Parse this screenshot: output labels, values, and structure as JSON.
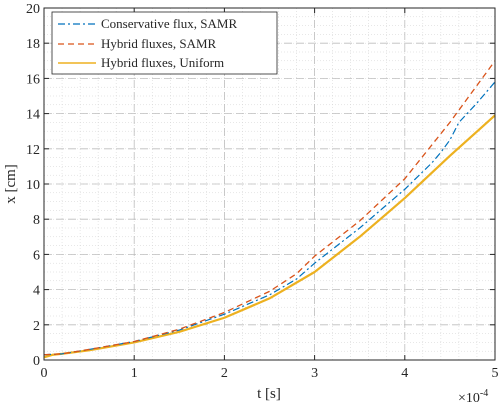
{
  "chart_data": {
    "type": "line",
    "xlabel": "t [s]",
    "ylabel": "x [cm]",
    "x_multiplier_label": "×10",
    "x_multiplier_exp": "-4",
    "xlim": [
      0,
      5
    ],
    "ylim": [
      0,
      20
    ],
    "x_ticks": [
      "0",
      "1",
      "2",
      "3",
      "4",
      "5"
    ],
    "y_ticks": [
      "0",
      "2",
      "4",
      "6",
      "8",
      "10",
      "12",
      "14",
      "16",
      "18",
      "20"
    ],
    "grid": true,
    "minor_grid": true,
    "legend_position": "top-left",
    "series": [
      {
        "name": "Conservative flux, SAMR",
        "color": "#0072BD",
        "style": "dashdot",
        "x": [
          0,
          0.2,
          0.5,
          1.0,
          1.5,
          2.0,
          2.5,
          2.8,
          3.0,
          3.5,
          4.0,
          4.3,
          4.4,
          4.5,
          4.6,
          4.8,
          5.0
        ],
        "y": [
          0.3,
          0.35,
          0.6,
          1.05,
          1.7,
          2.6,
          3.7,
          4.6,
          5.5,
          7.5,
          9.7,
          11.2,
          11.8,
          12.5,
          13.5,
          14.6,
          15.8
        ]
      },
      {
        "name": "Hybrid fluxes, SAMR",
        "color": "#D95319",
        "style": "dashed",
        "x": [
          0,
          0.2,
          0.5,
          1.0,
          1.5,
          2.0,
          2.5,
          2.8,
          3.0,
          3.5,
          4.0,
          4.5,
          5.0
        ],
        "y": [
          0.3,
          0.35,
          0.6,
          1.05,
          1.75,
          2.7,
          3.9,
          4.9,
          5.9,
          7.9,
          10.3,
          13.5,
          17.0
        ]
      },
      {
        "name": "Hybrid fluxes, Uniform",
        "color": "#EDB120",
        "style": "solid",
        "x": [
          0,
          0.1,
          0.2,
          0.5,
          1.0,
          1.5,
          2.0,
          2.5,
          3.0,
          3.5,
          4.0,
          4.5,
          5.0
        ],
        "y": [
          0.15,
          0.3,
          0.35,
          0.55,
          1.0,
          1.6,
          2.4,
          3.5,
          5.0,
          7.0,
          9.2,
          11.6,
          13.9
        ]
      }
    ]
  }
}
